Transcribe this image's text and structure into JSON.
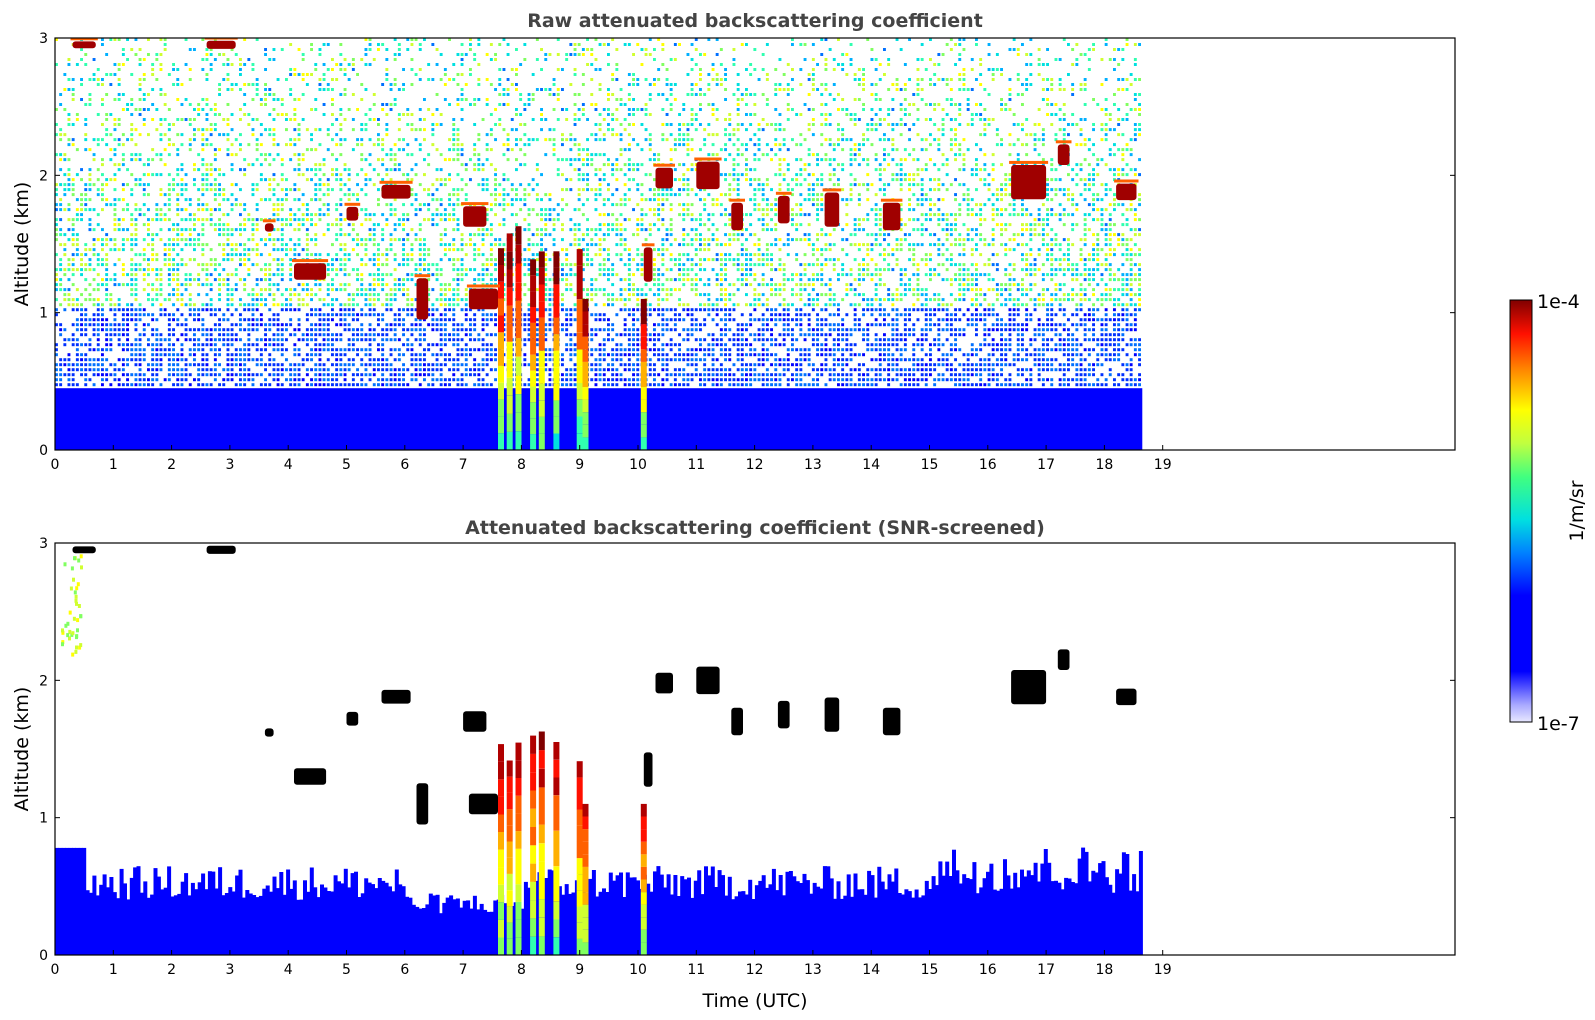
{
  "chart_data": [
    {
      "type": "heatmap",
      "title": "Raw attenuated backscattering coefficient",
      "xlabel": "",
      "ylabel": "Altitude (km)",
      "xlim": [
        0,
        24
      ],
      "ylim": [
        0,
        3
      ],
      "x_ticks": [
        "0",
        "1",
        "2",
        "3",
        "4",
        "5",
        "6",
        "7",
        "8",
        "9",
        "10",
        "11",
        "12",
        "13",
        "14",
        "15",
        "16",
        "17",
        "18",
        "19"
      ],
      "y_ticks": [
        "0",
        "1",
        "2",
        "3"
      ],
      "data_extent_hours": [
        0,
        18.65
      ],
      "colormap": "jet",
      "notes_visible": "dense blue near surface (0-0.5 km), noisy speckle aloft, cloud patches at 1.2-2.1 km, vertical rain streaks around 7.6-9.1 UTC"
    },
    {
      "type": "heatmap",
      "title": "Attenuated backscattering coefficient (SNR-screened)",
      "xlabel": "Time (UTC)",
      "ylabel": "Altitude (km)",
      "xlim": [
        0,
        24
      ],
      "ylim": [
        0,
        3
      ],
      "x_ticks": [
        "0",
        "1",
        "2",
        "3",
        "4",
        "5",
        "6",
        "7",
        "8",
        "9",
        "10",
        "11",
        "12",
        "13",
        "14",
        "15",
        "16",
        "17",
        "18",
        "19"
      ],
      "y_ticks": [
        "0",
        "1",
        "2",
        "3"
      ],
      "data_extent_hours": [
        0,
        18.65
      ],
      "colormap": "jet",
      "notes_visible": "boundary layer up to ~0.4-0.8 km, screened cloud patches at 1.2-2.2 km, rain streaks 7.6-9.2 UTC"
    }
  ],
  "colorbar": {
    "label": "1/m/sr",
    "max_label": "1e-4",
    "min_label": "1e-7",
    "scale": "log",
    "range": [
      1e-07,
      0.0001
    ]
  }
}
